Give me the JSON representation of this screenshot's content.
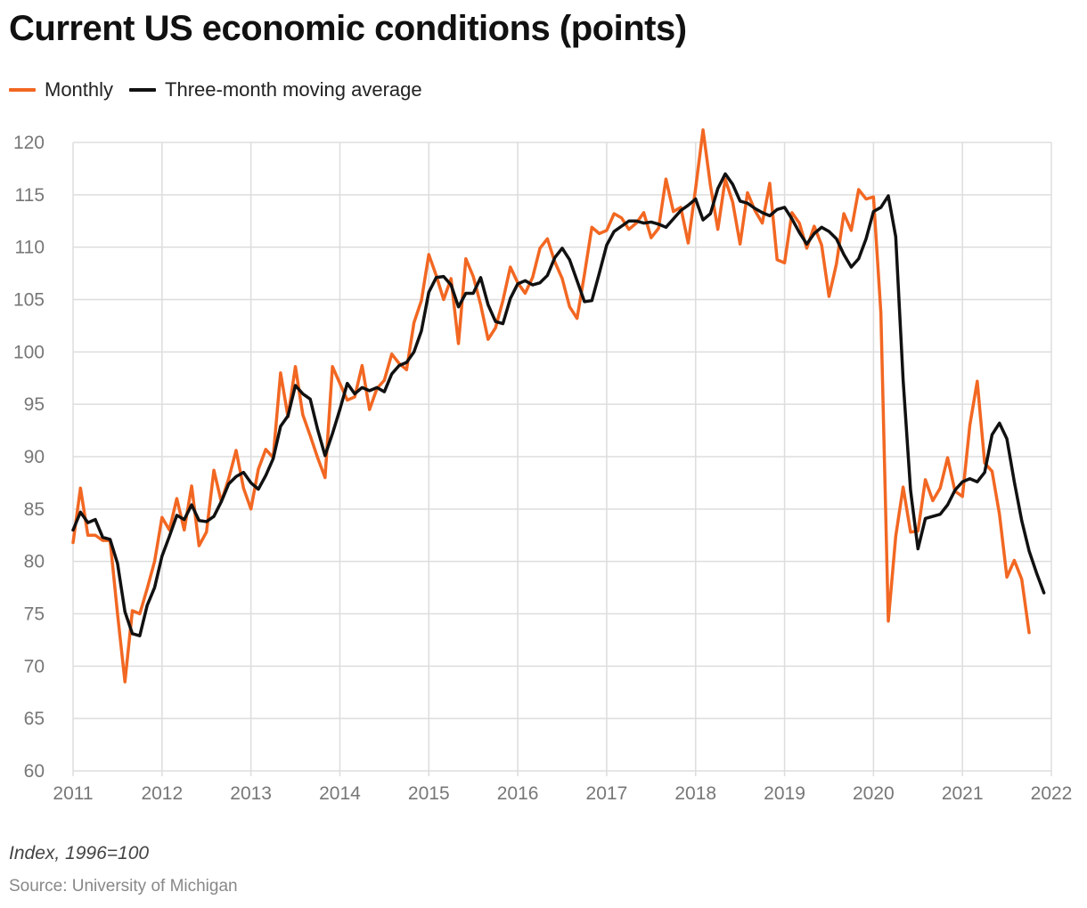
{
  "title": "Current US economic conditions (points)",
  "footnote": "Index, 1996=100",
  "source": "Source: University of Michigan",
  "colors": {
    "monthly": "#f26722",
    "moving_average": "#111111",
    "grid": "#dddddd",
    "axis_text": "#777777"
  },
  "chart_data": {
    "type": "line",
    "title": "Current US economic conditions (points)",
    "xlabel": "",
    "ylabel": "",
    "xlim": [
      2011,
      2022
    ],
    "ylim": [
      60,
      120
    ],
    "x_ticks": [
      2011,
      2012,
      2013,
      2014,
      2015,
      2016,
      2017,
      2018,
      2019,
      2020,
      2021,
      2022
    ],
    "y_ticks": [
      60,
      65,
      70,
      75,
      80,
      85,
      90,
      95,
      100,
      105,
      110,
      115,
      120
    ],
    "grid": true,
    "legend_position": "top-left",
    "start": "2011-01",
    "frequency": "monthly",
    "series": [
      {
        "name": "Monthly",
        "color": "#f26722",
        "values": [
          81.8,
          87.0,
          82.5,
          82.5,
          82.0,
          82.0,
          75.0,
          68.5,
          75.3,
          75.0,
          77.4,
          80.0,
          84.2,
          83.0,
          86.0,
          83.0,
          87.2,
          81.5,
          82.8,
          88.7,
          85.7,
          87.9,
          90.6,
          87.0,
          85.0,
          88.8,
          90.7,
          89.9,
          98.0,
          93.8,
          98.6,
          94.0,
          92.0,
          89.9,
          88.0,
          98.6,
          97.0,
          95.4,
          95.7,
          98.7,
          94.5,
          96.5,
          97.3,
          99.8,
          98.9,
          98.3,
          102.8,
          104.9,
          109.3,
          107.3,
          105.0,
          107.0,
          100.8,
          108.9,
          107.2,
          104.5,
          101.2,
          102.3,
          104.9,
          108.1,
          106.6,
          105.6,
          107.1,
          109.9,
          110.8,
          108.6,
          107.0,
          104.3,
          103.2,
          107.4,
          111.9,
          111.3,
          111.6,
          113.2,
          112.8,
          111.7,
          112.3,
          113.3,
          110.9,
          111.8,
          116.5,
          113.4,
          113.8,
          110.4,
          115.6,
          121.2,
          115.9,
          111.7,
          116.5,
          114.3,
          110.3,
          115.2,
          113.5,
          112.3,
          116.1,
          108.8,
          108.5,
          113.3,
          112.3,
          109.9,
          112.0,
          110.2,
          105.3,
          108.4,
          113.2,
          111.6,
          115.5,
          114.6,
          114.8,
          103.7,
          74.3,
          82.4,
          87.1,
          82.8,
          82.9,
          87.8,
          85.8,
          87.0,
          89.9,
          86.7,
          86.2,
          93.0,
          97.2,
          89.4,
          88.6,
          84.5,
          78.5,
          80.1,
          78.3,
          73.2
        ]
      },
      {
        "name": "Three-month moving average",
        "color": "#111111",
        "values": [
          83.0,
          84.7,
          83.7,
          84.0,
          82.3,
          82.1,
          79.8,
          75.2,
          73.1,
          72.9,
          75.8,
          77.5,
          80.5,
          82.4,
          84.4,
          84.0,
          85.4,
          83.9,
          83.8,
          84.3,
          85.7,
          87.4,
          88.1,
          88.5,
          87.5,
          86.9,
          88.2,
          89.8,
          92.9,
          93.9,
          96.8,
          96.0,
          95.5,
          92.6,
          90.1,
          92.2,
          94.5,
          97.0,
          96.0,
          96.6,
          96.3,
          96.6,
          96.2,
          97.9,
          98.7,
          99.0,
          100.0,
          102.0,
          105.7,
          107.1,
          107.2,
          106.4,
          104.3,
          105.6,
          105.6,
          107.1,
          104.5,
          102.9,
          102.7,
          105.1,
          106.5,
          106.8,
          106.4,
          106.6,
          107.3,
          109.0,
          109.9,
          108.8,
          106.8,
          104.8,
          104.9,
          107.5,
          110.2,
          111.5,
          112.0,
          112.5,
          112.5,
          112.3,
          112.4,
          112.2,
          111.9,
          112.7,
          113.5,
          114.0,
          114.6,
          112.6,
          113.2,
          115.6,
          117.0,
          116.0,
          114.4,
          114.2,
          113.7,
          113.3,
          113.0,
          113.6,
          113.8,
          112.7,
          111.4,
          110.3,
          111.3,
          111.9,
          111.5,
          110.8,
          109.3,
          108.1,
          108.9,
          110.8,
          113.4,
          113.8,
          114.9,
          111.0,
          97.3,
          86.8,
          81.2,
          84.1,
          84.3,
          84.5,
          85.4,
          86.8,
          87.6,
          87.9,
          87.6,
          88.5,
          92.1,
          93.2,
          91.7,
          87.6,
          83.9,
          81.0,
          78.9,
          77.0
        ]
      }
    ]
  }
}
